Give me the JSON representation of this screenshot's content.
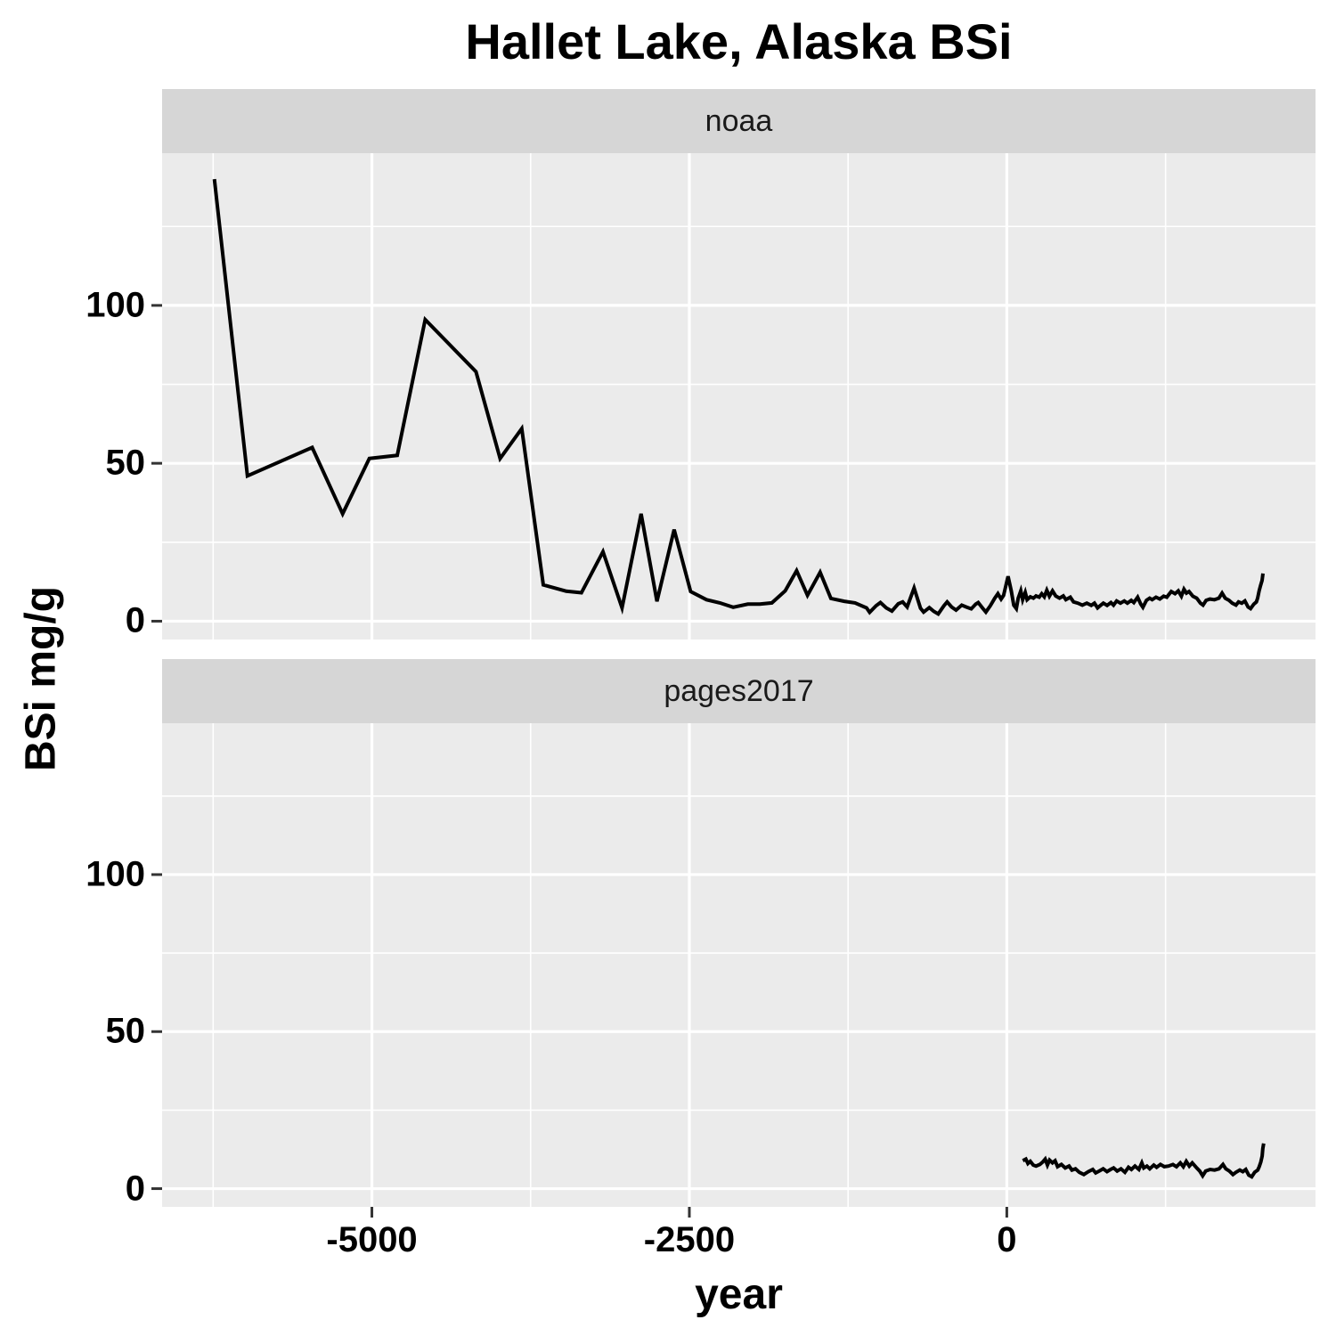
{
  "title": "Hallet Lake, Alaska BSi",
  "axes": {
    "x_title": "year",
    "y_title": "BSi mg/g"
  },
  "facets": [
    {
      "label": "noaa"
    },
    {
      "label": "pages2017"
    }
  ],
  "colors": {
    "background": "#FFFFFF",
    "panel_bg": "#EBEBEB",
    "strip_bg": "#D6D6D6",
    "grid": "#FFFFFF",
    "line": "#000000",
    "tick_mark": "#333333",
    "text": "#000000",
    "strip_text": "#1A1A1A"
  },
  "chart_data": {
    "type": "line",
    "title": "Hallet Lake, Alaska BSi",
    "xlabel": "year",
    "ylabel": "BSi mg/g",
    "grid": true,
    "legend": false,
    "xlim": [
      -6652,
      2431
    ],
    "ylim": [
      -5.8,
      148.2
    ],
    "x_major_ticks": [
      -5000,
      -2500,
      0
    ],
    "x_minor_ticks": [
      -6250,
      -3750,
      -1250,
      1250
    ],
    "y_major_ticks": [
      0,
      50,
      100
    ],
    "y_minor_ticks": [
      25,
      75,
      125
    ],
    "facet_series": [
      {
        "facet": "noaa",
        "x": [
          -6240,
          -5980,
          -5470,
          -5230,
          -5020,
          -4800,
          -4580,
          -4180,
          -3990,
          -3820,
          -3650,
          -3470,
          -3350,
          -3180,
          -3030,
          -2880,
          -2755,
          -2620,
          -2490,
          -2365,
          -2260,
          -2155,
          -2040,
          -1945,
          -1850,
          -1745,
          -1655,
          -1570,
          -1470,
          -1385,
          -1280,
          -1195,
          -1105,
          -1080,
          -1030,
          -995,
          -950,
          -905,
          -855,
          -820,
          -785,
          -730,
          -680,
          -655,
          -610,
          -575,
          -540,
          -495,
          -470,
          -435,
          -400,
          -355,
          -320,
          -280,
          -245,
          -225,
          -190,
          -165,
          -130,
          -95,
          -70,
          -45,
          -25,
          10,
          35,
          55,
          75,
          90,
          110,
          125,
          145,
          160,
          185,
          210,
          230,
          255,
          275,
          295,
          315,
          335,
          360,
          385,
          415,
          445,
          465,
          500,
          525,
          560,
          595,
          630,
          665,
          690,
          715,
          735,
          760,
          790,
          820,
          840,
          865,
          895,
          925,
          950,
          980,
          1000,
          1030,
          1055,
          1072,
          1100,
          1125,
          1145,
          1175,
          1205,
          1235,
          1260,
          1295,
          1325,
          1350,
          1375,
          1395,
          1415,
          1435,
          1465,
          1495,
          1525,
          1545,
          1570,
          1600,
          1635,
          1670,
          1695,
          1720,
          1750,
          1775,
          1805,
          1825,
          1850,
          1875,
          1900,
          1920,
          1945,
          1965,
          1975,
          1987,
          1998,
          2010,
          2017
        ],
        "y": [
          140,
          46,
          55,
          34,
          51.5,
          52.5,
          95.5,
          79,
          51.5,
          61,
          11.5,
          9.5,
          9,
          22,
          4.2,
          34,
          6.3,
          29,
          9.4,
          6.8,
          5.8,
          4.4,
          5.4,
          5.4,
          5.8,
          9.6,
          16,
          8.2,
          15.5,
          7.2,
          6.3,
          5.8,
          4.2,
          2.8,
          4.9,
          5.9,
          4.2,
          3.2,
          5.5,
          6.1,
          4.5,
          10.5,
          4.1,
          2.9,
          4.3,
          3.1,
          2.3,
          4.9,
          6.1,
          4.5,
          3.5,
          5.1,
          4.5,
          3.9,
          5.4,
          5.9,
          4.1,
          2.9,
          4.9,
          7.3,
          8.7,
          7,
          8.2,
          14.2,
          9.6,
          5.1,
          4,
          7.3,
          9.6,
          6.8,
          9.1,
          6.8,
          7.7,
          7.3,
          8,
          7.6,
          8.7,
          7.7,
          9.8,
          7.9,
          9.6,
          8,
          7.3,
          8,
          6.8,
          7.6,
          6.1,
          5.7,
          5.1,
          5.7,
          5,
          5.7,
          4.2,
          4.9,
          5.7,
          5,
          5.9,
          5.1,
          6.4,
          5.7,
          6.4,
          5.7,
          6.6,
          5.9,
          7.6,
          5.4,
          4.4,
          6.6,
          7.3,
          6.8,
          7.6,
          7,
          7.9,
          7.6,
          9.4,
          8.7,
          9.6,
          7.9,
          10.1,
          8.9,
          9.4,
          7.9,
          7.3,
          5.7,
          5.1,
          6.6,
          7,
          6.8,
          7.3,
          8.9,
          7.3,
          6.6,
          5.7,
          5.1,
          6.1,
          5.7,
          6.4,
          4.5,
          4,
          5.4,
          6.1,
          7.3,
          9.6,
          11.3,
          12.9,
          15.1
        ]
      },
      {
        "facet": "pages2017",
        "x": [
          126,
          150,
          166,
          185,
          208,
          230,
          260,
          283,
          302,
          320,
          337,
          360,
          380,
          400,
          430,
          460,
          490,
          513,
          541,
          571,
          607,
          642,
          677,
          700,
          728,
          759,
          789,
          817,
          841,
          869,
          899,
          930,
          958,
          981,
          1009,
          1040,
          1063,
          1079,
          1103,
          1126,
          1157,
          1180,
          1210,
          1240,
          1273,
          1308,
          1336,
          1366,
          1390,
          1413,
          1437,
          1460,
          1495,
          1519,
          1542,
          1566,
          1601,
          1636,
          1671,
          1702,
          1725,
          1753,
          1781,
          1805,
          1835,
          1859,
          1882,
          1906,
          1929,
          1952,
          1976,
          1988,
          2000,
          2011,
          2016,
          2023
        ],
        "y": [
          8.9,
          9.4,
          8,
          8.7,
          7.5,
          7.2,
          7.7,
          8.5,
          9.4,
          7.5,
          9.1,
          8.2,
          8.9,
          7,
          7.7,
          6.6,
          7.2,
          5.9,
          6.3,
          5.2,
          4.5,
          5.4,
          6.1,
          5,
          5.6,
          6.3,
          5.4,
          6.1,
          6.6,
          5.6,
          6.3,
          5.2,
          6.8,
          6.1,
          7.2,
          6.1,
          8.2,
          6.6,
          7.2,
          6.3,
          7.5,
          6.8,
          7.7,
          7,
          7.2,
          7.7,
          7,
          8.2,
          7,
          8.7,
          7.2,
          8.2,
          6.6,
          5.6,
          4.1,
          5.6,
          6.1,
          5.9,
          6.3,
          7.7,
          6.3,
          5.6,
          4.5,
          5.2,
          5.9,
          5.4,
          6.1,
          4.3,
          3.8,
          5.2,
          5.9,
          7,
          8.5,
          10.4,
          12.7,
          14.4
        ]
      }
    ]
  }
}
